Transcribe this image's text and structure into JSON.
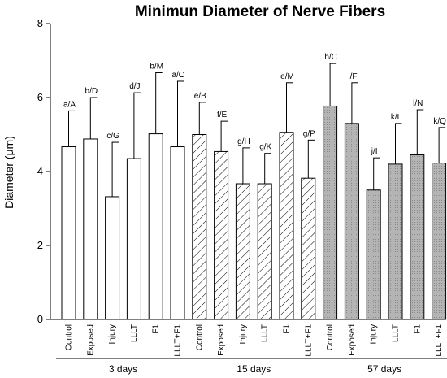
{
  "chart_data": {
    "type": "bar",
    "title": "Minimun Diameter of Nerve Fibers",
    "ylabel": "Diameter (μm)",
    "ylim": [
      0,
      8
    ],
    "yticks": [
      "0",
      "2",
      "4",
      "6",
      "8"
    ],
    "grid": false,
    "categories": [
      "Control",
      "Exposed",
      "Injury",
      "LLLT",
      "F1",
      "LLLT+F1"
    ],
    "series": [
      {
        "name": "3 days",
        "fill": "white",
        "values": [
          4.67,
          4.88,
          3.32,
          4.35,
          5.02,
          4.67
        ],
        "errors": [
          0.97,
          1.12,
          1.47,
          1.78,
          1.65,
          1.77
        ],
        "annotations": [
          "a/A",
          "b/D",
          "c/G",
          "d/J",
          "b/M",
          "a/O"
        ]
      },
      {
        "name": "15 days",
        "fill": "hatch",
        "values": [
          5.0,
          4.54,
          3.67,
          3.67,
          5.06,
          3.82
        ],
        "errors": [
          0.87,
          0.82,
          0.97,
          0.82,
          1.34,
          1.03
        ],
        "annotations": [
          "e/B",
          "f/E",
          "g/H",
          "g/K",
          "e/M",
          "g/P"
        ]
      },
      {
        "name": "57 days",
        "fill": "dotted-gray",
        "values": [
          5.77,
          5.3,
          3.5,
          4.2,
          4.45,
          4.23
        ],
        "errors": [
          1.15,
          1.1,
          0.87,
          1.1,
          1.22,
          0.96
        ],
        "annotations": [
          "h/C",
          "i/F",
          "j/I",
          "k/L",
          "l/N",
          "k/Q"
        ]
      }
    ],
    "colors": {
      "stroke": "#000000",
      "gray_fill": "#b4b4b4",
      "white_fill": "#ffffff"
    }
  }
}
